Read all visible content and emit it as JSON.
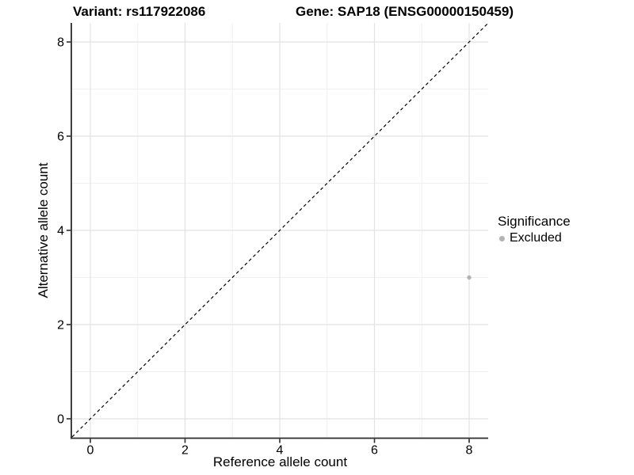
{
  "chart_data": {
    "type": "scatter",
    "title_left": "Variant: rs117922086",
    "title_right": "Gene: SAP18 (ENSG00000150459)",
    "xlabel": "Reference allele count",
    "ylabel": "Alternative allele count",
    "xlim": [
      -0.39,
      8.4
    ],
    "ylim": [
      -0.39,
      8.4
    ],
    "x_tick_values": [
      0,
      2,
      4,
      6,
      8
    ],
    "x_tick_labels": [
      "0",
      "2",
      "4",
      "6",
      "8"
    ],
    "y_tick_values": [
      0,
      2,
      4,
      6,
      8
    ],
    "y_tick_labels": [
      "0",
      "2",
      "4",
      "6",
      "8"
    ],
    "minor_tick_values": [
      1,
      3,
      5,
      7
    ],
    "grid": "major and minor gridlines, white panel background",
    "reference_line": {
      "kind": "identity y = x",
      "style": "dashed",
      "color": "#000000"
    },
    "series": [
      {
        "name": "Excluded",
        "color": "#b3b3b3",
        "points": [
          {
            "x": 8,
            "y": 3
          }
        ]
      }
    ],
    "legend": {
      "title": "Significance",
      "position": "right",
      "items": [
        {
          "label": "Excluded",
          "color": "#b3b3b3"
        }
      ]
    }
  },
  "colors": {
    "background": "#ffffff",
    "grid_major": "#e2e2e2",
    "grid_minor": "#f0f0f0",
    "axis": "#2b2b2b",
    "text": "#000000"
  }
}
